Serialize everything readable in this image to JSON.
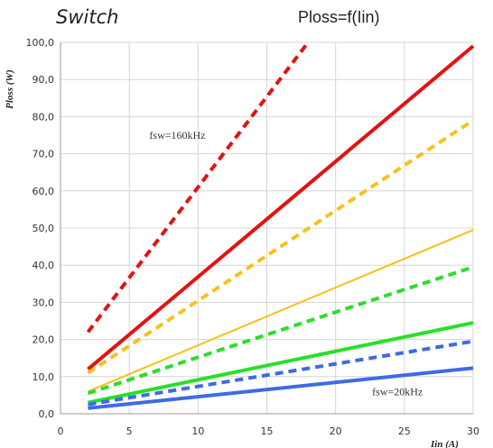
{
  "chart_data": {
    "type": "line",
    "title_left": "Switch",
    "title": "Ploss=f(Iin)",
    "xlabel": "Iin (A)",
    "ylabel": "Ploss (W)",
    "xlim": [
      0,
      30
    ],
    "ylim": [
      0,
      100
    ],
    "x_ticks": [
      "0",
      "5",
      "10",
      "15",
      "20",
      "25",
      "30"
    ],
    "y_ticks": [
      "0,0",
      "10,0",
      "20,0",
      "30,0",
      "40,0",
      "50,0",
      "60,0",
      "70,0",
      "80,0",
      "90,0",
      "100,0"
    ],
    "grid": true,
    "annotations": [
      {
        "text": "fsw=160kHz",
        "x": 8.5,
        "y": 74
      },
      {
        "text": "fsw=20kHz",
        "x": 24.5,
        "y": 5
      }
    ],
    "series": [
      {
        "color": "#e31212",
        "style": "dashed",
        "width": 4,
        "x": [
          2,
          18
        ],
        "y": [
          22,
          100
        ]
      },
      {
        "color": "#e31212",
        "style": "solid",
        "width": 4,
        "x": [
          2,
          30
        ],
        "y": [
          12,
          99
        ]
      },
      {
        "color": "#f5c21b",
        "style": "dashed",
        "width": 4,
        "x": [
          2,
          30
        ],
        "y": [
          11,
          79
        ]
      },
      {
        "color": "#f5c21b",
        "style": "solid",
        "width": 2,
        "x": [
          2,
          30
        ],
        "y": [
          6,
          49.5
        ]
      },
      {
        "color": "#28e028",
        "style": "dashed",
        "width": 4,
        "x": [
          2,
          30
        ],
        "y": [
          5.5,
          39.5
        ]
      },
      {
        "color": "#28e028",
        "style": "solid",
        "width": 4,
        "x": [
          2,
          30
        ],
        "y": [
          3,
          24.5
        ]
      },
      {
        "color": "#3d6be6",
        "style": "dashed",
        "width": 4,
        "x": [
          2,
          30
        ],
        "y": [
          2.5,
          19.5
        ]
      },
      {
        "color": "#3d6be6",
        "style": "solid",
        "width": 4,
        "x": [
          2,
          30
        ],
        "y": [
          1.5,
          12.3
        ]
      }
    ]
  }
}
